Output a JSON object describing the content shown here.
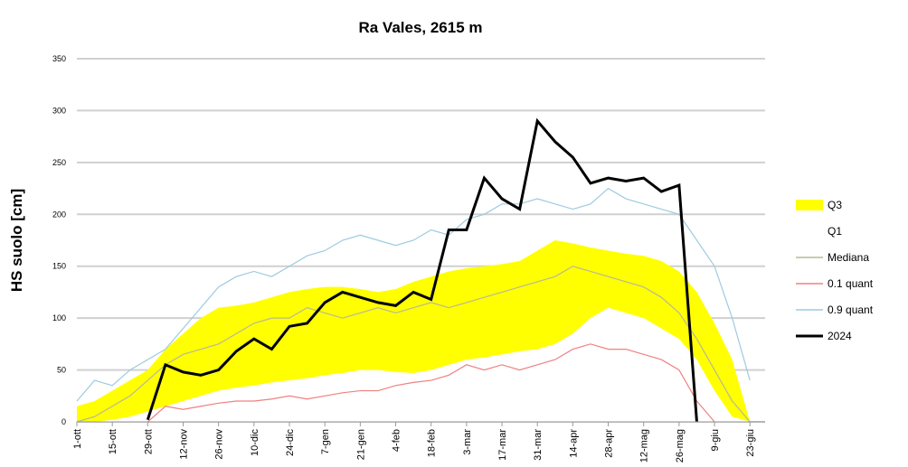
{
  "chart_data": {
    "type": "line",
    "title": "Ra Vales, 2615 m",
    "y_label": "HS suolo [cm]",
    "x": [
      0,
      7,
      14,
      21,
      28,
      35,
      42,
      49,
      56,
      63,
      70,
      77,
      84,
      91,
      98,
      105,
      112,
      119,
      126,
      133,
      140,
      147,
      154,
      161,
      168,
      175,
      182,
      189,
      196,
      203,
      210,
      217,
      224,
      231,
      238,
      245,
      252,
      259,
      266
    ],
    "xlim": [
      0,
      272
    ],
    "xticks": [
      {
        "value": 0,
        "label": "1-ott"
      },
      {
        "value": 14,
        "label": "15-ott"
      },
      {
        "value": 28,
        "label": "29-ott"
      },
      {
        "value": 42,
        "label": "12-nov"
      },
      {
        "value": 56,
        "label": "26-nov"
      },
      {
        "value": 70,
        "label": "10-dic"
      },
      {
        "value": 84,
        "label": "24-dic"
      },
      {
        "value": 98,
        "label": "7-gen"
      },
      {
        "value": 112,
        "label": "21-gen"
      },
      {
        "value": 126,
        "label": "4-feb"
      },
      {
        "value": 140,
        "label": "18-feb"
      },
      {
        "value": 154,
        "label": "3-mar"
      },
      {
        "value": 168,
        "label": "17-mar"
      },
      {
        "value": 182,
        "label": "31-mar"
      },
      {
        "value": 196,
        "label": "14-apr"
      },
      {
        "value": 210,
        "label": "28-apr"
      },
      {
        "value": 224,
        "label": "12-mag"
      },
      {
        "value": 238,
        "label": "26-mag"
      },
      {
        "value": 252,
        "label": "9-giu"
      },
      {
        "value": 266,
        "label": "23-giu"
      }
    ],
    "ylim": [
      0,
      350
    ],
    "yticks": [
      0,
      50,
      100,
      150,
      200,
      250,
      300,
      350
    ],
    "grid": true,
    "legend": "right",
    "series": [
      {
        "name": "Q3",
        "color": "#ffff00",
        "area": true,
        "values": [
          15,
          20,
          30,
          40,
          50,
          70,
          85,
          100,
          110,
          112,
          115,
          120,
          125,
          128,
          130,
          130,
          128,
          125,
          128,
          135,
          140,
          145,
          148,
          150,
          152,
          155,
          165,
          175,
          172,
          168,
          165,
          162,
          160,
          155,
          145,
          125,
          95,
          60,
          0
        ]
      },
      {
        "name": "Q1",
        "color": "#ffffff",
        "area": true,
        "values": [
          0,
          0,
          2,
          5,
          10,
          15,
          20,
          25,
          30,
          33,
          35,
          38,
          40,
          42,
          45,
          47,
          50,
          50,
          48,
          47,
          50,
          55,
          60,
          62,
          65,
          68,
          70,
          75,
          85,
          100,
          110,
          105,
          100,
          90,
          80,
          60,
          30,
          5,
          0
        ]
      },
      {
        "name": "Mediana",
        "color": "#b8b89a",
        "values": [
          0,
          5,
          15,
          25,
          40,
          55,
          65,
          70,
          75,
          85,
          95,
          100,
          100,
          110,
          105,
          100,
          105,
          110,
          105,
          110,
          115,
          110,
          115,
          120,
          125,
          130,
          135,
          140,
          150,
          145,
          140,
          135,
          130,
          120,
          105,
          80,
          50,
          20,
          0
        ]
      },
      {
        "name": "0.1 quant",
        "color": "#f08080",
        "values": [
          null,
          null,
          null,
          null,
          0,
          15,
          12,
          15,
          18,
          20,
          20,
          22,
          25,
          22,
          25,
          28,
          30,
          30,
          35,
          38,
          40,
          45,
          55,
          50,
          55,
          50,
          55,
          60,
          70,
          75,
          70,
          70,
          65,
          60,
          50,
          20,
          0,
          null,
          null
        ]
      },
      {
        "name": "0.9 quant",
        "color": "#9ccbe0",
        "values": [
          20,
          40,
          35,
          50,
          60,
          70,
          90,
          110,
          130,
          140,
          145,
          140,
          150,
          160,
          165,
          175,
          180,
          175,
          170,
          175,
          185,
          180,
          195,
          200,
          210,
          210,
          215,
          210,
          205,
          210,
          225,
          215,
          210,
          205,
          200,
          175,
          150,
          100,
          40
        ]
      },
      {
        "name": "2024",
        "color": "#000000",
        "line_width": 3,
        "values": [
          null,
          null,
          null,
          null,
          2,
          55,
          48,
          45,
          50,
          68,
          80,
          70,
          92,
          95,
          115,
          125,
          120,
          115,
          112,
          125,
          118,
          185,
          185,
          235,
          215,
          205,
          290,
          270,
          255,
          230,
          235,
          232,
          235,
          222,
          228,
          0,
          null,
          null,
          null
        ]
      }
    ]
  }
}
